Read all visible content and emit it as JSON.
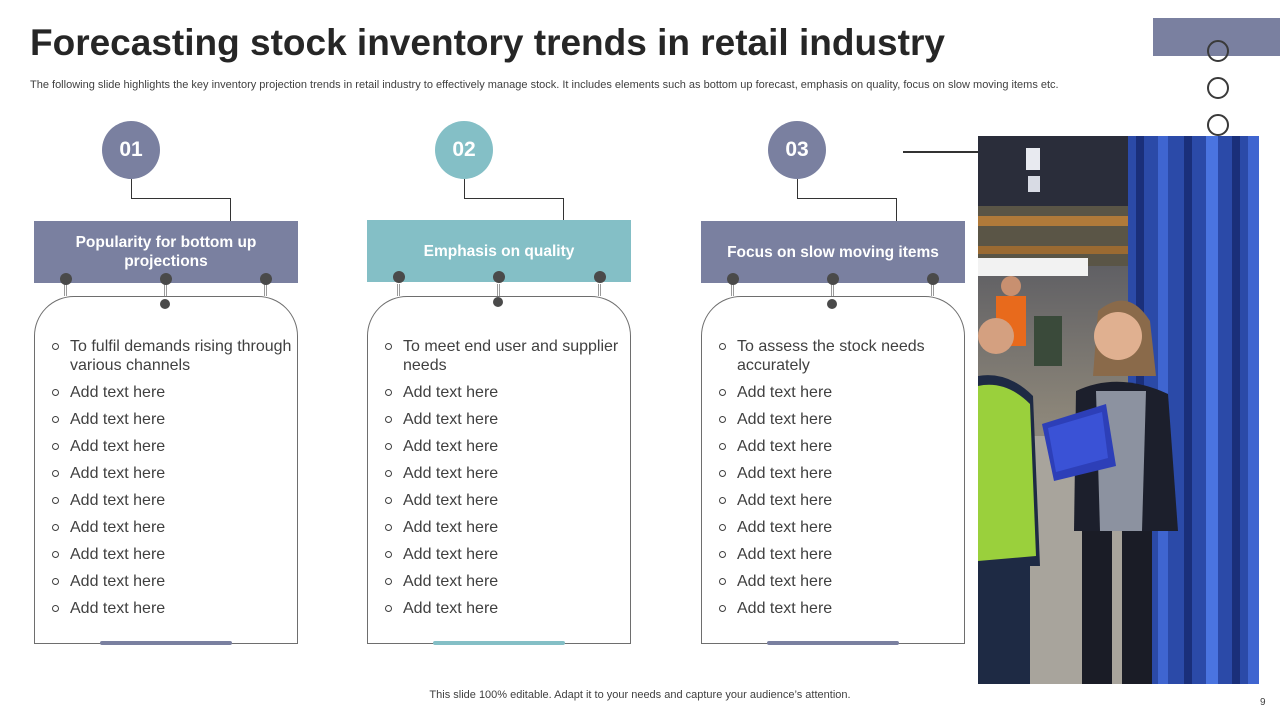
{
  "slide": {
    "title": "Forecasting stock inventory trends in retail industry",
    "subtitle": "The following slide highlights the key inventory projection trends in retail industry to effectively manage stock. It includes elements such as bottom up forecast, emphasis on quality, focus on slow moving items etc.",
    "footer": "This slide 100% editable. Adapt it to your needs and capture your audience’s attention.",
    "page_number": "9"
  },
  "colors": {
    "slate": "#7a80a0",
    "teal": "#84bfc6",
    "text": "#404040"
  },
  "columns": [
    {
      "number": "01",
      "heading": "Popularity for bottom up projections",
      "color": "#7a80a0",
      "items": [
        "To fulfil demands rising through various channels",
        "Add text here",
        "Add text here",
        "Add text here",
        "Add text here",
        "Add text here",
        "Add text here",
        "Add text here",
        "Add text here",
        "Add text here"
      ]
    },
    {
      "number": "02",
      "heading": "Emphasis on quality",
      "color": "#84bfc6",
      "items": [
        "To meet end user and supplier needs",
        "Add text here",
        "Add text here",
        "Add text here",
        "Add text here",
        "Add text here",
        "Add text here",
        "Add text here",
        "Add text here",
        "Add text here"
      ]
    },
    {
      "number": "03",
      "heading": "Focus on slow moving items",
      "color": "#7a80a0",
      "items": [
        "To assess the stock needs accurately",
        "Add text here",
        "Add text here",
        "Add text here",
        "Add text here",
        "Add text here",
        "Add text here",
        "Add text here",
        "Add text here",
        "Add text here"
      ]
    }
  ],
  "decor": {
    "ring_icons": [
      "circle-icon",
      "circle-icon",
      "circle-icon",
      "circle-icon"
    ]
  }
}
